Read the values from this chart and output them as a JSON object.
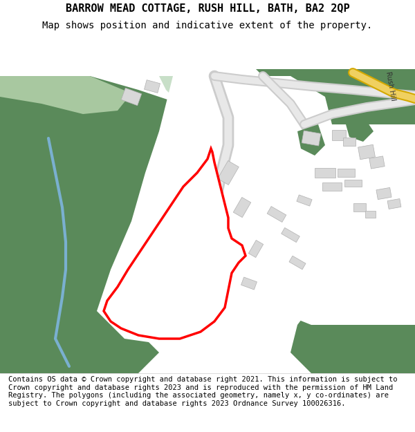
{
  "title_line1": "BARROW MEAD COTTAGE, RUSH HILL, BATH, BA2 2QP",
  "title_line2": "Map shows position and indicative extent of the property.",
  "footer_text": "Contains OS data © Crown copyright and database right 2021. This information is subject to Crown copyright and database rights 2023 and is reproduced with the permission of HM Land Registry. The polygons (including the associated geometry, namely x, y co-ordinates) are subject to Crown copyright and database rights 2023 Ordnance Survey 100026316.",
  "bg_color": "#ffffff",
  "map_bg": "#f0f0f0",
  "dark_green": "#5a8a5a",
  "light_green": "#a8c8a0",
  "lighter_green": "#c8dfc8",
  "road_color": "#e8e8e8",
  "road_outline": "#cccccc",
  "yellow_road": "#f0d060",
  "yellow_road_outline": "#d4a800",
  "building_color": "#d8d8d8",
  "building_outline": "#b0b0b0",
  "river_color": "#7ab0d0",
  "plot_outline": "red",
  "plot_linewidth": 2.5,
  "rush_hill_label": "Rush Hill",
  "figsize": [
    6.0,
    6.25
  ],
  "dpi": 100,
  "title_fontsize": 11,
  "subtitle_fontsize": 10,
  "footer_fontsize": 7.5
}
